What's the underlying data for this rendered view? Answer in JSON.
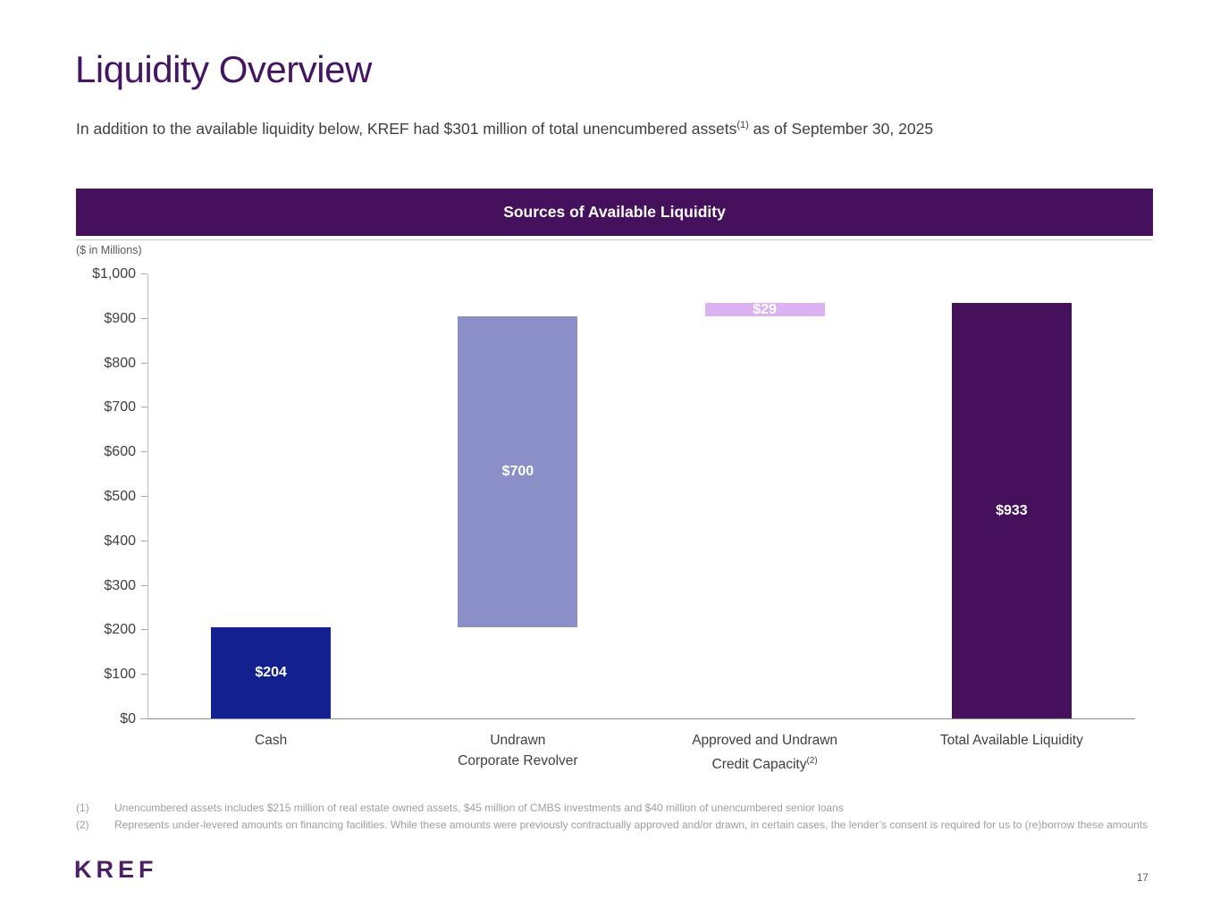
{
  "slide": {
    "title": "Liquidity Overview",
    "subtitle": {
      "before_sup": "In addition to the available liquidity below, KREF had $301 million of total unencumbered assets",
      "sup": "(1)",
      "after_sup": " as of September 30, 2025"
    },
    "chart_header": "Sources of Available Liquidity",
    "footnotes": [
      {
        "marker": "(1)",
        "text": "Unencumbered assets includes $215 million of real estate owned assets, $45 million of CMBS investments and $40 million of unencumbered senior loans"
      },
      {
        "marker": "(2)",
        "text": "Represents under-levered amounts on financing facilities. While these amounts were previously contractually approved and/or drawn, in certain cases, the lender’s consent is required for us to (re)borrow these amounts"
      }
    ],
    "logo": "KREF",
    "page_number": "17"
  },
  "colors": {
    "brand_purple": "#45115C",
    "title_text": "#451563",
    "cash_bar": "#12218F",
    "revolver_bar": "#8B8FC7",
    "credit_capacity_bar": "#DCB2F2",
    "total_bar": "#45115C",
    "body_text": "#3F3F3F",
    "footnote_text": "#9E9E9E",
    "axis_line": "#8C8C8C"
  },
  "chart_data": {
    "type": "bar",
    "subtype": "waterfall-stacked",
    "title": "Sources of Available Liquidity",
    "units_label": "($ in Millions)",
    "ylim": [
      0,
      1000
    ],
    "ytick_step": 100,
    "grid": false,
    "legend": false,
    "yticks": [
      {
        "value": 0,
        "label": "$0"
      },
      {
        "value": 100,
        "label": "$100"
      },
      {
        "value": 200,
        "label": "$200"
      },
      {
        "value": 300,
        "label": "$300"
      },
      {
        "value": 400,
        "label": "$400"
      },
      {
        "value": 500,
        "label": "$500"
      },
      {
        "value": 600,
        "label": "$600"
      },
      {
        "value": 700,
        "label": "$700"
      },
      {
        "value": 800,
        "label": "$800"
      },
      {
        "value": 900,
        "label": "$900"
      },
      {
        "value": 1000,
        "label": "$1,000"
      }
    ],
    "categories": [
      {
        "id": "cash",
        "lines": [
          "Cash"
        ]
      },
      {
        "id": "undrawn-corporate-revolver",
        "lines": [
          "Undrawn",
          "Corporate Revolver"
        ]
      },
      {
        "id": "approved-undrawn-credit-capacity",
        "lines": [
          "Approved and Undrawn",
          "Credit Capacity"
        ],
        "sup": "(2)"
      },
      {
        "id": "total-available-liquidity",
        "lines": [
          "Total Available Liquidity"
        ]
      }
    ],
    "bars": [
      {
        "id": "cash",
        "label": "$204",
        "value": 204,
        "base": 0,
        "color": "#12218F"
      },
      {
        "id": "undrawn-corporate-revolver",
        "label": "$700",
        "value": 700,
        "base": 204,
        "color": "#8B8FC7"
      },
      {
        "id": "approved-undrawn-credit-capacity",
        "label": "$29",
        "value": 29,
        "base": 904,
        "color": "#DCB2F2"
      },
      {
        "id": "total-available-liquidity",
        "label": "$933",
        "value": 933,
        "base": 0,
        "color": "#45115C"
      }
    ]
  }
}
